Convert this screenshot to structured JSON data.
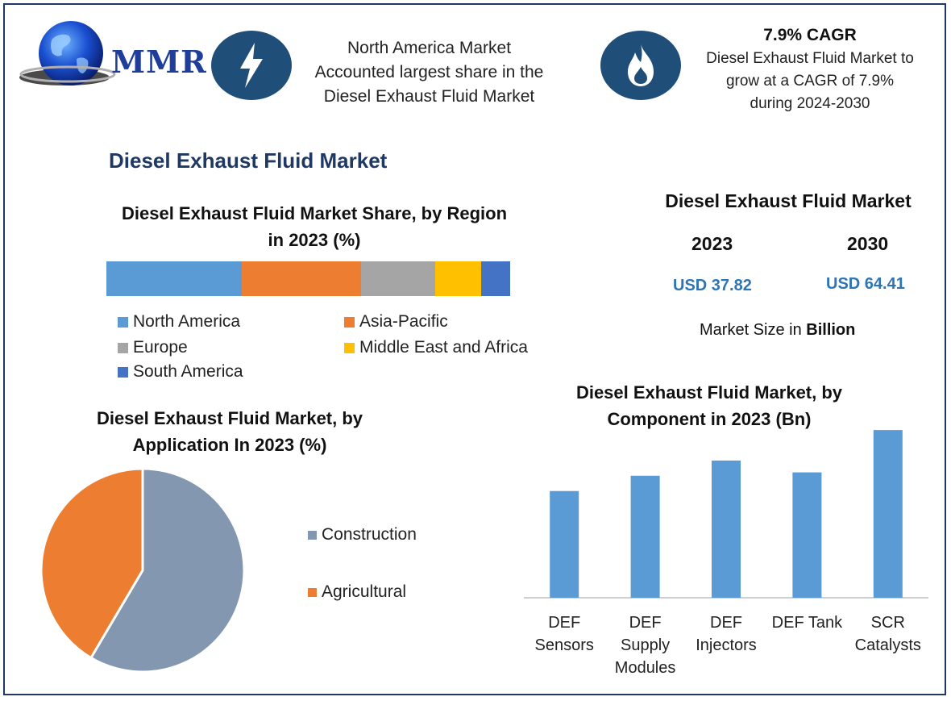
{
  "logo": {
    "text": "MMR"
  },
  "header": {
    "region_lines": [
      "North America Market",
      "Accounted largest share in the",
      "Diesel Exhaust Fluid Market"
    ],
    "cagr_title": "7.9% CAGR",
    "cagr_lines": [
      "Diesel Exhaust Fluid Market to",
      "grow at a CAGR of 7.9%",
      "during 2024-2030"
    ],
    "icon_left": "lightning-icon",
    "icon_right": "flame-icon"
  },
  "main_title": "Diesel Exhaust Fluid Market",
  "market_size": {
    "title": "Diesel Exhaust Fluid Market",
    "year1": "2023",
    "year2": "2030",
    "value1": "USD 37.82",
    "value2": "USD 64.41",
    "unit_prefix": "Market Size in ",
    "unit_bold": "Billion"
  },
  "colors": {
    "north_america": "#5b9bd5",
    "asia_pacific": "#ed7d31",
    "europe": "#a5a5a5",
    "mea": "#ffc000",
    "south_america": "#4472c4",
    "construction": "#8497b0",
    "agricultural": "#ed7d31",
    "bar": "#5b9bd5",
    "navy": "#1f4e79"
  },
  "chart_data": [
    {
      "type": "bar",
      "title": [
        "Diesel Exhaust Fluid Market Share, by Region",
        "in 2023 (%)"
      ],
      "stacked": true,
      "orientation": "horizontal",
      "series": [
        {
          "name": "North America",
          "value": 33.5
        },
        {
          "name": "Asia-Pacific",
          "value": 29.5
        },
        {
          "name": "Europe",
          "value": 18.5
        },
        {
          "name": "Middle East and Africa",
          "value": 11.3
        },
        {
          "name": "South America",
          "value": 7.2
        }
      ],
      "legend": [
        "North America",
        "Asia-Pacific",
        "Europe",
        "Middle East and Africa",
        "South America"
      ]
    },
    {
      "type": "pie",
      "title": [
        "Diesel Exhaust Fluid Market, by",
        "Application In 2023 (%)"
      ],
      "slices": [
        {
          "name": "Construction",
          "value": 58.5
        },
        {
          "name": "Agricultural",
          "value": 41.5
        }
      ],
      "legend": [
        "Construction",
        "Agricultural"
      ]
    },
    {
      "type": "bar",
      "title": [
        "Diesel Exhaust Fluid Market, by",
        "Component in 2023 (Bn)"
      ],
      "categories": [
        [
          "DEF",
          "Sensors"
        ],
        [
          "DEF",
          "Supply",
          "Modules"
        ],
        [
          "DEF",
          "Injectors"
        ],
        [
          "DEF Tank"
        ],
        [
          "SCR",
          "Catalysts"
        ]
      ],
      "values": [
        6.3,
        7.2,
        8.1,
        7.4,
        9.9
      ],
      "ylim": [
        0,
        10
      ]
    }
  ]
}
